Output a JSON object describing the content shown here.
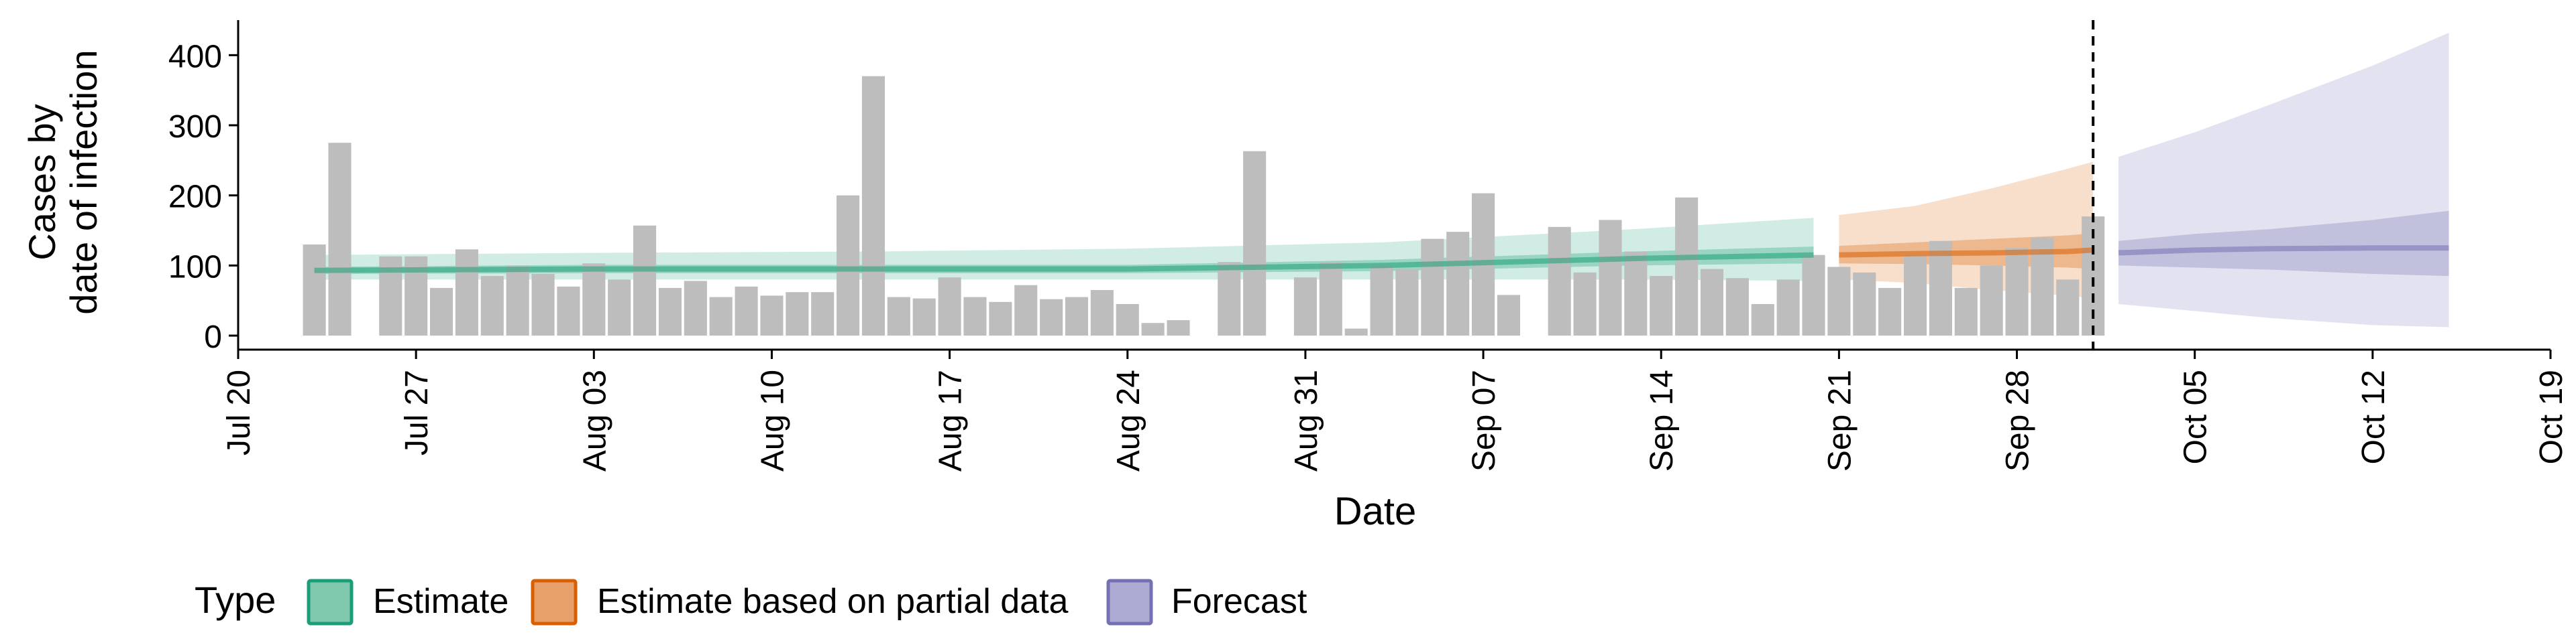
{
  "chart_data": {
    "type": "bar",
    "ylabel_lines": [
      "Cases by",
      "date of infection"
    ],
    "xlabel": "Date",
    "y_ticks": [
      0,
      100,
      200,
      300,
      400
    ],
    "x_ticks": [
      {
        "date": "2020-07-20",
        "label": "Jul 20"
      },
      {
        "date": "2020-07-27",
        "label": "Jul 27"
      },
      {
        "date": "2020-08-03",
        "label": "Aug 03"
      },
      {
        "date": "2020-08-10",
        "label": "Aug 10"
      },
      {
        "date": "2020-08-17",
        "label": "Aug 17"
      },
      {
        "date": "2020-08-24",
        "label": "Aug 24"
      },
      {
        "date": "2020-08-31",
        "label": "Aug 31"
      },
      {
        "date": "2020-09-07",
        "label": "Sep 07"
      },
      {
        "date": "2020-09-14",
        "label": "Sep 14"
      },
      {
        "date": "2020-09-21",
        "label": "Sep 21"
      },
      {
        "date": "2020-09-28",
        "label": "Sep 28"
      },
      {
        "date": "2020-10-05",
        "label": "Oct 05"
      },
      {
        "date": "2020-10-12",
        "label": "Oct 12"
      },
      {
        "date": "2020-10-19",
        "label": "Oct 19"
      }
    ],
    "xlim": [
      "2020-07-20",
      "2020-10-19"
    ],
    "ylim": [
      -20,
      450
    ],
    "cutoff_date": "2020-10-01",
    "bars": {
      "dates": [
        "2020-07-23",
        "2020-07-24",
        "2020-07-25",
        "2020-07-26",
        "2020-07-27",
        "2020-07-28",
        "2020-07-29",
        "2020-07-30",
        "2020-07-31",
        "2020-08-01",
        "2020-08-02",
        "2020-08-03",
        "2020-08-04",
        "2020-08-05",
        "2020-08-06",
        "2020-08-07",
        "2020-08-08",
        "2020-08-09",
        "2020-08-10",
        "2020-08-11",
        "2020-08-12",
        "2020-08-13",
        "2020-08-14",
        "2020-08-15",
        "2020-08-16",
        "2020-08-17",
        "2020-08-18",
        "2020-08-19",
        "2020-08-20",
        "2020-08-21",
        "2020-08-22",
        "2020-08-23",
        "2020-08-24",
        "2020-08-25",
        "2020-08-26",
        "2020-08-27",
        "2020-08-28",
        "2020-08-29",
        "2020-08-30",
        "2020-08-31",
        "2020-09-01",
        "2020-09-02",
        "2020-09-03",
        "2020-09-04",
        "2020-09-05",
        "2020-09-06",
        "2020-09-07",
        "2020-09-08",
        "2020-09-09",
        "2020-09-10",
        "2020-09-11",
        "2020-09-12",
        "2020-09-13",
        "2020-09-14",
        "2020-09-15",
        "2020-09-16",
        "2020-09-17",
        "2020-09-18",
        "2020-09-19",
        "2020-09-20",
        "2020-09-21",
        "2020-09-22",
        "2020-09-23",
        "2020-09-24",
        "2020-09-25",
        "2020-09-26",
        "2020-09-27",
        "2020-09-28",
        "2020-09-29",
        "2020-09-30",
        "2020-10-01"
      ],
      "values": [
        130,
        275,
        0,
        113,
        113,
        68,
        123,
        85,
        100,
        88,
        70,
        103,
        80,
        157,
        68,
        78,
        55,
        70,
        57,
        62,
        62,
        200,
        370,
        55,
        53,
        83,
        55,
        48,
        72,
        52,
        55,
        65,
        45,
        18,
        22,
        0,
        105,
        263,
        0,
        83,
        105,
        10,
        100,
        95,
        138,
        148,
        203,
        58,
        0,
        155,
        90,
        165,
        120,
        85,
        197,
        95,
        82,
        45,
        80,
        115,
        98,
        90,
        68,
        115,
        135,
        68,
        100,
        125,
        140,
        80,
        170
      ]
    },
    "series": [
      {
        "name": "Estimate",
        "color": "#1b9e77",
        "dates": [
          "2020-07-23",
          "2020-08-03",
          "2020-08-14",
          "2020-08-24",
          "2020-09-03",
          "2020-09-13",
          "2020-09-20"
        ],
        "median": [
          93,
          95,
          95,
          95,
          100,
          110,
          115
        ],
        "lower50": [
          88,
          89,
          89,
          89,
          92,
          100,
          103
        ],
        "upper50": [
          98,
          101,
          101,
          101,
          108,
          120,
          127
        ],
        "lower90": [
          80,
          80,
          80,
          80,
          80,
          80,
          78
        ],
        "upper90": [
          115,
          118,
          120,
          124,
          133,
          152,
          168
        ]
      },
      {
        "name": "Estimate based on partial data",
        "color": "#d95f02",
        "dates": [
          "2020-09-21",
          "2020-09-24",
          "2020-09-27",
          "2020-09-30",
          "2020-10-01"
        ],
        "median": [
          115,
          117,
          118,
          120,
          122
        ],
        "lower50": [
          103,
          102,
          100,
          97,
          95
        ],
        "upper50": [
          128,
          133,
          138,
          143,
          146
        ],
        "lower90": [
          80,
          75,
          65,
          57,
          53
        ],
        "upper90": [
          172,
          185,
          210,
          238,
          248
        ]
      },
      {
        "name": "Forecast",
        "color": "#7570b3",
        "dates": [
          "2020-10-02",
          "2020-10-05",
          "2020-10-08",
          "2020-10-12",
          "2020-10-15"
        ],
        "median": [
          118,
          122,
          124,
          125,
          125
        ],
        "lower50": [
          100,
          97,
          94,
          88,
          85
        ],
        "upper50": [
          135,
          145,
          152,
          165,
          178
        ],
        "lower90": [
          45,
          35,
          25,
          15,
          12
        ],
        "upper90": [
          255,
          290,
          330,
          385,
          432
        ]
      }
    ],
    "legend": {
      "title": "Type",
      "position": "bottom-left",
      "items": [
        {
          "label": "Estimate",
          "fill": "#7fc7ad",
          "stroke": "#1b9e77"
        },
        {
          "label": "Estimate based on partial data",
          "fill": "#e8a06a",
          "stroke": "#d95f02"
        },
        {
          "label": "Forecast",
          "fill": "#acaad2",
          "stroke": "#7570b3"
        }
      ]
    },
    "bar_color": "#bdbdbd",
    "grid": false
  }
}
